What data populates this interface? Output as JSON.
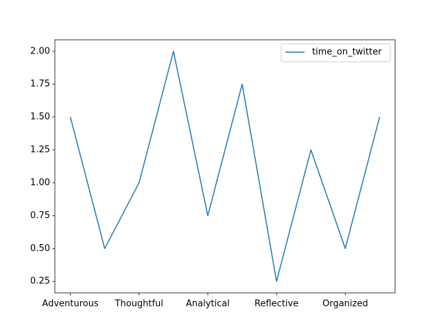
{
  "chart_data": {
    "type": "line",
    "categories": [
      "Adventurous",
      null,
      "Thoughtful",
      null,
      "Analytical",
      null,
      "Reflective",
      null,
      "Organized",
      null
    ],
    "series": [
      {
        "name": "time_on_twitter",
        "color": "#1f77b4",
        "values": [
          1.5,
          0.5,
          1.0,
          2.0,
          0.75,
          1.75,
          0.25,
          1.25,
          0.5,
          1.5
        ]
      }
    ],
    "ylim": [
      0.1625,
      2.0875
    ],
    "yticks": [
      {
        "value": 0.25,
        "label": "0.25"
      },
      {
        "value": 0.5,
        "label": "0.50"
      },
      {
        "value": 0.75,
        "label": "0.75"
      },
      {
        "value": 1.0,
        "label": "1.00"
      },
      {
        "value": 1.25,
        "label": "1.25"
      },
      {
        "value": 1.5,
        "label": "1.50"
      },
      {
        "value": 1.75,
        "label": "1.75"
      },
      {
        "value": 2.0,
        "label": "2.00"
      }
    ],
    "legend": "upper right",
    "grid": false
  }
}
